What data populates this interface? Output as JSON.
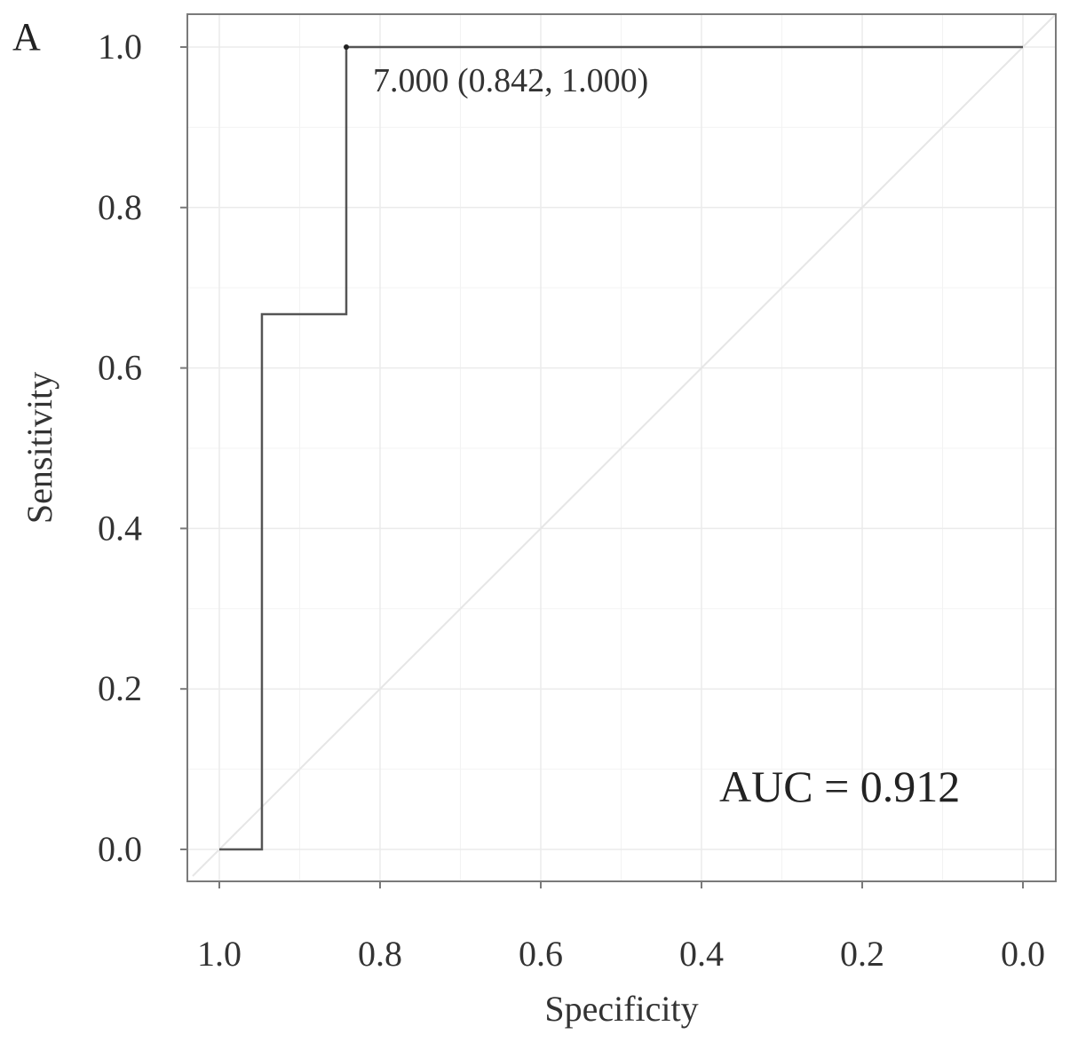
{
  "panel_label": "A",
  "chart_data": {
    "type": "line",
    "title": "",
    "xlabel": "Specificity",
    "ylabel": "Sensitivity",
    "x_reversed": true,
    "xlim": [
      1.0,
      0.0
    ],
    "ylim": [
      0.0,
      1.0
    ],
    "x_ticks": [
      1.0,
      0.8,
      0.6,
      0.4,
      0.2,
      0.0
    ],
    "x_tick_labels": [
      "1.0",
      "0.8",
      "0.6",
      "0.4",
      "0.2",
      "0.0"
    ],
    "y_ticks": [
      0.0,
      0.2,
      0.4,
      0.6,
      0.8,
      1.0
    ],
    "y_tick_labels": [
      "0.0",
      "0.2",
      "0.4",
      "0.6",
      "0.8",
      "1.0"
    ],
    "grid": true,
    "series": [
      {
        "x": [
          1.0,
          0.947,
          0.947,
          0.842,
          0.842,
          0.0
        ],
        "y": [
          0.0,
          0.0,
          0.667,
          0.667,
          1.0,
          1.0
        ],
        "color": "#555555"
      }
    ],
    "reference_line": {
      "x": [
        1.0,
        0.0
      ],
      "y": [
        0.0,
        1.0
      ],
      "color": "#e6e6e6"
    },
    "threshold_point": {
      "x": 0.842,
      "y": 1.0,
      "label": "7.000 (0.842, 1.000)"
    },
    "annotations": [
      {
        "text": "AUC = 0.912",
        "x": 0.2,
        "y": 0.08
      }
    ]
  }
}
